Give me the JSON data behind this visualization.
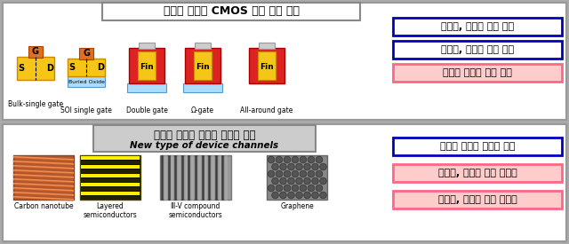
{
  "top_title": "실리콘 기반의 CMOS 기술 발전 방향",
  "bottom_title_kr": "신물질 기반의 차세대 반도체 소자",
  "bottom_title_en": "New type of device channels",
  "top_labels": [
    "Bulk-single gate",
    "SOI single gate",
    "Double gate",
    "Ω-gate",
    "All-around gate"
  ],
  "bottom_labels": [
    "Carbon nanotube",
    "Layered\nsemiconductors",
    "Ⅲ-V compound\nsemiconductors",
    "Graphene"
  ],
  "top_right_boxes": [
    {
      "text": "신뢰성, 안정성 동작 구현",
      "bg": "#ffffff",
      "border": "#0000bb",
      "textcolor": "#000000"
    },
    {
      "text": "대면적, 대규모 생산 가능",
      "bg": "#ffffff",
      "border": "#0000bb",
      "textcolor": "#000000"
    },
    {
      "text": "소자의 물리적 한계 도달",
      "bg": "#ffcccc",
      "border": "#ff6688",
      "textcolor": "#000000"
    }
  ],
  "bottom_right_boxes": [
    {
      "text": "월등히 우수한 전기적 특성",
      "bg": "#ffffff",
      "border": "#0000bb",
      "textcolor": "#000000"
    },
    {
      "text": "신뢰성, 안정성 확보 어려움",
      "bg": "#ffcccc",
      "border": "#ff6688",
      "textcolor": "#000000"
    },
    {
      "text": "대면적, 대규모 생산 어려움",
      "bg": "#ffcccc",
      "border": "#ff6688",
      "textcolor": "#000000"
    }
  ],
  "outer_bg": "#aaaaaa"
}
